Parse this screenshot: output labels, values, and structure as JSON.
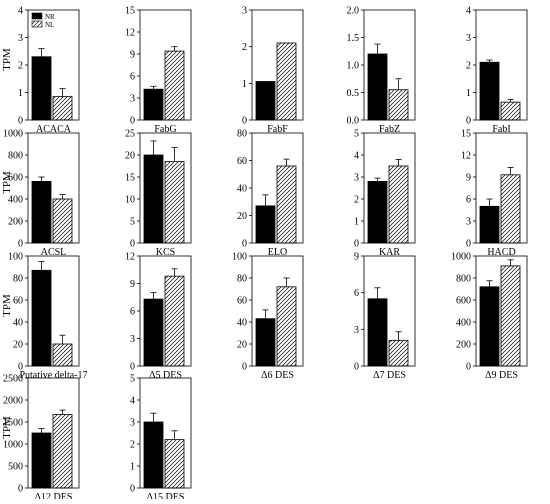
{
  "chart_data": [
    {
      "type": "bar",
      "title": "",
      "xlabel": "ACACA",
      "ylabel": "TPM",
      "categories": [
        "ACACA"
      ],
      "ylim": [
        0,
        4
      ],
      "yticks": [
        0,
        1,
        2,
        3,
        4
      ],
      "tick_labels": [
        "0",
        "1",
        "2",
        "3",
        "4"
      ],
      "series": [
        {
          "name": "NR",
          "values": [
            2.3
          ],
          "errors": [
            0.3
          ]
        },
        {
          "name": "NL",
          "values": [
            0.85
          ],
          "errors": [
            0.3
          ]
        }
      ],
      "legend": "top-left",
      "grid": false
    },
    {
      "type": "bar",
      "title": "",
      "xlabel": "FabG",
      "ylabel": "",
      "categories": [
        "FabG"
      ],
      "ylim": [
        0,
        15
      ],
      "yticks": [
        0,
        3,
        6,
        9,
        12,
        15
      ],
      "tick_labels": [
        "0",
        "3",
        "6",
        "9",
        "12",
        "15"
      ],
      "series": [
        {
          "name": "NR",
          "values": [
            4.2
          ],
          "errors": [
            0.4
          ]
        },
        {
          "name": "NL",
          "values": [
            9.4
          ],
          "errors": [
            0.6
          ]
        }
      ],
      "grid": false
    },
    {
      "type": "bar",
      "title": "",
      "xlabel": "FabF",
      "ylabel": "",
      "categories": [
        "FabF"
      ],
      "ylim": [
        0,
        3
      ],
      "yticks": [
        0,
        1,
        2,
        3
      ],
      "tick_labels": [
        "0",
        "1",
        "2",
        "3"
      ],
      "series": [
        {
          "name": "NR",
          "values": [
            1.05
          ],
          "errors": [
            0.0
          ]
        },
        {
          "name": "NL",
          "values": [
            2.1
          ],
          "errors": [
            0.0
          ]
        }
      ],
      "grid": false
    },
    {
      "type": "bar",
      "title": "",
      "xlabel": "FabZ",
      "ylabel": "",
      "categories": [
        "FabZ"
      ],
      "ylim": [
        0,
        2.0
      ],
      "yticks": [
        0,
        0.5,
        1.0,
        1.5,
        2.0
      ],
      "tick_labels": [
        "0.0",
        "0.5",
        "1.0",
        "1.5",
        "2.0"
      ],
      "series": [
        {
          "name": "NR",
          "values": [
            1.2
          ],
          "errors": [
            0.18
          ]
        },
        {
          "name": "NL",
          "values": [
            0.55
          ],
          "errors": [
            0.2
          ]
        }
      ],
      "grid": false
    },
    {
      "type": "bar",
      "title": "",
      "xlabel": "FabI",
      "ylabel": "",
      "categories": [
        "FabI"
      ],
      "ylim": [
        0,
        4
      ],
      "yticks": [
        0,
        1,
        2,
        3,
        4
      ],
      "tick_labels": [
        "0",
        "1",
        "2",
        "3",
        "4"
      ],
      "series": [
        {
          "name": "NR",
          "values": [
            2.1
          ],
          "errors": [
            0.08
          ]
        },
        {
          "name": "NL",
          "values": [
            0.65
          ],
          "errors": [
            0.1
          ]
        }
      ],
      "grid": false
    },
    {
      "type": "bar",
      "title": "",
      "xlabel": "ACSL",
      "ylabel": "TPM",
      "categories": [
        "ACSL"
      ],
      "ylim": [
        0,
        1000
      ],
      "yticks": [
        0,
        200,
        400,
        600,
        800,
        1000
      ],
      "tick_labels": [
        "0",
        "200",
        "400",
        "600",
        "800",
        "1000"
      ],
      "series": [
        {
          "name": "NR",
          "values": [
            560
          ],
          "errors": [
            40
          ]
        },
        {
          "name": "NL",
          "values": [
            400
          ],
          "errors": [
            40
          ]
        }
      ],
      "grid": false
    },
    {
      "type": "bar",
      "title": "",
      "xlabel": "KCS",
      "ylabel": "",
      "categories": [
        "KCS"
      ],
      "ylim": [
        0,
        25
      ],
      "yticks": [
        0,
        5,
        10,
        15,
        20,
        25
      ],
      "tick_labels": [
        "0",
        "5",
        "10",
        "15",
        "20",
        "25"
      ],
      "series": [
        {
          "name": "NR",
          "values": [
            20
          ],
          "errors": [
            3.2
          ]
        },
        {
          "name": "NL",
          "values": [
            18.5
          ],
          "errors": [
            3.2
          ]
        }
      ],
      "grid": false
    },
    {
      "type": "bar",
      "title": "",
      "xlabel": "ELO",
      "ylabel": "",
      "categories": [
        "ELO"
      ],
      "ylim": [
        0,
        80
      ],
      "yticks": [
        0,
        20,
        40,
        60,
        80
      ],
      "tick_labels": [
        "0",
        "20",
        "40",
        "60",
        "80"
      ],
      "series": [
        {
          "name": "NR",
          "values": [
            27
          ],
          "errors": [
            8
          ]
        },
        {
          "name": "NL",
          "values": [
            56
          ],
          "errors": [
            5
          ]
        }
      ],
      "grid": false
    },
    {
      "type": "bar",
      "title": "",
      "xlabel": "KAR",
      "ylabel": "",
      "categories": [
        "KAR"
      ],
      "ylim": [
        0,
        5
      ],
      "yticks": [
        0,
        1,
        2,
        3,
        4,
        5
      ],
      "tick_labels": [
        "0",
        "1",
        "2",
        "3",
        "4",
        "5"
      ],
      "series": [
        {
          "name": "NR",
          "values": [
            2.8
          ],
          "errors": [
            0.15
          ]
        },
        {
          "name": "NL",
          "values": [
            3.5
          ],
          "errors": [
            0.3
          ]
        }
      ],
      "grid": false
    },
    {
      "type": "bar",
      "title": "",
      "xlabel": "HACD",
      "ylabel": "",
      "categories": [
        "HACD"
      ],
      "ylim": [
        0,
        15
      ],
      "yticks": [
        0,
        3,
        6,
        9,
        12,
        15
      ],
      "tick_labels": [
        "0",
        "3",
        "6",
        "9",
        "12",
        "15"
      ],
      "series": [
        {
          "name": "NR",
          "values": [
            5
          ],
          "errors": [
            1.0
          ]
        },
        {
          "name": "NL",
          "values": [
            9.3
          ],
          "errors": [
            1.0
          ]
        }
      ],
      "grid": false
    },
    {
      "type": "bar",
      "title": "",
      "xlabel": "Putative delta-17",
      "ylabel": "TPM",
      "categories": [
        "Putative delta-17"
      ],
      "ylim": [
        0,
        100
      ],
      "yticks": [
        0,
        20,
        40,
        60,
        80,
        100
      ],
      "tick_labels": [
        "0",
        "20",
        "40",
        "60",
        "80",
        "100"
      ],
      "series": [
        {
          "name": "NR",
          "values": [
            87
          ],
          "errors": [
            8
          ]
        },
        {
          "name": "NL",
          "values": [
            20
          ],
          "errors": [
            8
          ]
        }
      ],
      "grid": false
    },
    {
      "type": "bar",
      "title": "",
      "xlabel": "Δ5 DES",
      "ylabel": "",
      "categories": [
        "Δ5 DES"
      ],
      "ylim": [
        0,
        12
      ],
      "yticks": [
        0,
        3,
        6,
        9,
        12
      ],
      "tick_labels": [
        "0",
        "3",
        "6",
        "9",
        "12"
      ],
      "series": [
        {
          "name": "NR",
          "values": [
            7.3
          ],
          "errors": [
            0.7
          ]
        },
        {
          "name": "NL",
          "values": [
            9.8
          ],
          "errors": [
            0.8
          ]
        }
      ],
      "grid": false
    },
    {
      "type": "bar",
      "title": "",
      "xlabel": "Δ6 DES",
      "ylabel": "",
      "categories": [
        "Δ6 DES"
      ],
      "ylim": [
        0,
        100
      ],
      "yticks": [
        0,
        20,
        40,
        60,
        80,
        100
      ],
      "tick_labels": [
        "0",
        "20",
        "40",
        "60",
        "80",
        "100"
      ],
      "series": [
        {
          "name": "NR",
          "values": [
            43
          ],
          "errors": [
            8
          ]
        },
        {
          "name": "NL",
          "values": [
            72
          ],
          "errors": [
            8
          ]
        }
      ],
      "grid": false
    },
    {
      "type": "bar",
      "title": "",
      "xlabel": "Δ7 DES",
      "ylabel": "",
      "categories": [
        "Δ7 DES"
      ],
      "ylim": [
        0,
        9
      ],
      "yticks": [
        0,
        3,
        6,
        9
      ],
      "tick_labels": [
        "0",
        "3",
        "6",
        "9"
      ],
      "series": [
        {
          "name": "NR",
          "values": [
            5.5
          ],
          "errors": [
            0.9
          ]
        },
        {
          "name": "NL",
          "values": [
            2.1
          ],
          "errors": [
            0.7
          ]
        }
      ],
      "grid": false
    },
    {
      "type": "bar",
      "title": "",
      "xlabel": "Δ9 DES",
      "ylabel": "",
      "categories": [
        "Δ9 DES"
      ],
      "ylim": [
        0,
        1000
      ],
      "yticks": [
        0,
        200,
        400,
        600,
        800,
        1000
      ],
      "tick_labels": [
        "0",
        "200",
        "400",
        "600",
        "800",
        "1000"
      ],
      "series": [
        {
          "name": "NR",
          "values": [
            720
          ],
          "errors": [
            55
          ]
        },
        {
          "name": "NL",
          "values": [
            910
          ],
          "errors": [
            55
          ]
        }
      ],
      "grid": false
    },
    {
      "type": "bar",
      "title": "",
      "xlabel": "Δ12 DES",
      "ylabel": "TPM",
      "categories": [
        "Δ12 DES"
      ],
      "ylim": [
        0,
        2500
      ],
      "yticks": [
        0,
        500,
        1000,
        1500,
        2000,
        2500
      ],
      "tick_labels": [
        "0",
        "500",
        "1000",
        "1500",
        "2000",
        "2500"
      ],
      "series": [
        {
          "name": "NR",
          "values": [
            1250
          ],
          "errors": [
            100
          ]
        },
        {
          "name": "NL",
          "values": [
            1670
          ],
          "errors": [
            100
          ]
        }
      ],
      "grid": false
    },
    {
      "type": "bar",
      "title": "",
      "xlabel": "Δ15 DES",
      "ylabel": "",
      "categories": [
        "Δ15 DES"
      ],
      "ylim": [
        0,
        5
      ],
      "yticks": [
        0,
        1,
        2,
        3,
        4,
        5
      ],
      "tick_labels": [
        "0",
        "1",
        "2",
        "3",
        "4",
        "5"
      ],
      "series": [
        {
          "name": "NR",
          "values": [
            3
          ],
          "errors": [
            0.4
          ]
        },
        {
          "name": "NL",
          "values": [
            2.2
          ],
          "errors": [
            0.4
          ]
        }
      ],
      "grid": false
    }
  ]
}
